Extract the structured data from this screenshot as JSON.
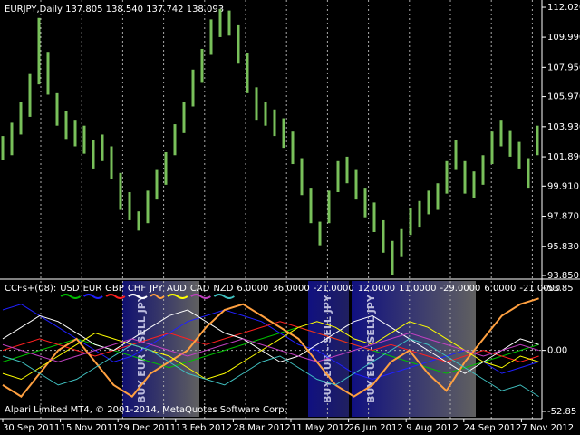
{
  "chart_data": [
    {
      "type": "ohlc",
      "title": "EURJPY,Daily 137.805 138.540 137.742 138.093",
      "color": "#78c05a",
      "high": [
        103.3,
        104.2,
        105.6,
        107.5,
        111.3,
        109.0,
        106.2,
        105.0,
        104.4,
        104.0,
        103.0,
        103.4,
        102.6,
        100.8,
        99.5,
        98.2,
        99.6,
        101.0,
        102.2,
        104.1,
        105.6,
        107.8,
        109.2,
        111.2,
        111.9,
        111.8,
        110.8,
        108.9,
        106.6,
        105.6,
        105.1,
        104.5,
        103.6,
        101.8,
        99.8,
        97.5,
        99.6,
        101.6,
        101.9,
        101.0,
        99.8,
        98.8,
        97.6,
        96.2,
        97.0,
        98.4,
        98.9,
        99.6,
        100.1,
        101.6,
        103.0,
        101.6,
        100.9,
        102.0,
        103.6,
        104.4,
        103.7,
        102.9,
        101.8,
        104.0
      ],
      "low": [
        101.7,
        102.0,
        103.4,
        104.6,
        106.8,
        106.1,
        104.0,
        103.1,
        102.6,
        102.1,
        101.1,
        101.6,
        100.4,
        98.3,
        97.6,
        96.9,
        97.4,
        99.0,
        100.0,
        102.0,
        103.5,
        105.3,
        106.9,
        108.8,
        110.0,
        110.1,
        108.2,
        106.2,
        104.4,
        104.0,
        103.3,
        102.5,
        101.4,
        99.3,
        97.4,
        95.9,
        97.4,
        99.5,
        100.1,
        99.0,
        97.8,
        96.8,
        95.4,
        93.9,
        95.1,
        96.6,
        97.1,
        98.0,
        98.3,
        99.4,
        101.0,
        99.4,
        99.1,
        100.0,
        101.4,
        102.6,
        101.9,
        101.1,
        99.8,
        102.0
      ],
      "ylim": [
        93.73,
        112.39
      ],
      "yticks": [
        {
          "value": 112.02,
          "label": "112.020"
        },
        {
          "value": 109.99,
          "label": "109.990"
        },
        {
          "value": 107.95,
          "label": "107.950"
        },
        {
          "value": 105.97,
          "label": "105.970"
        },
        {
          "value": 103.93,
          "label": "103.930"
        },
        {
          "value": 101.89,
          "label": "101.890"
        },
        {
          "value": 99.91,
          "label": "99.910"
        },
        {
          "value": 97.87,
          "label": "97.870"
        },
        {
          "value": 95.83,
          "label": "95.830"
        },
        {
          "value": 93.85,
          "label": "93.850"
        }
      ],
      "categories": [
        "30 Sep 2011",
        "15 Nov 2011",
        "29 Dec 2011",
        "13 Feb 2012",
        "28 Mar 2012",
        "11 May 2012",
        "26 Jun 2012",
        "9 Aug 2012",
        "24 Sep 2012",
        "7 Nov 2012"
      ]
    },
    {
      "type": "line",
      "title": "CCFs+(08):",
      "readouts": [
        "6.0000",
        "36.0000",
        "-21.0000",
        "12.0000",
        "11.0000",
        "-29.0000",
        "6.0000",
        "-21.0000"
      ],
      "ylim": [
        -57.56,
        60.13
      ],
      "yticks": [
        53.85,
        {
          "value": 0,
          "label": "0.00"
        },
        -52.85
      ],
      "annotations": [
        "BUY EUR - SELL JPY",
        "BUY EUR - SELL JPY",
        "BUY EUR - SELL JPY"
      ],
      "footer": "Alpari Limited MT4, © 2001-2014, MetaQuotes Software Corp.",
      "series": [
        {
          "name": "USD",
          "color": "#00c000",
          "values": [
            -10,
            -5,
            0,
            5,
            10,
            5,
            0,
            -5,
            -10,
            -15,
            -10,
            -5,
            0,
            5,
            10,
            15,
            20,
            15,
            10,
            5,
            0,
            -5,
            -10,
            -15,
            -20,
            -15,
            -10,
            -5,
            0,
            5
          ]
        },
        {
          "name": "EUR",
          "color": "#2020ff",
          "values": [
            35,
            40,
            30,
            20,
            10,
            0,
            -10,
            -5,
            5,
            15,
            25,
            30,
            35,
            30,
            25,
            15,
            5,
            0,
            -10,
            -20,
            -25,
            -20,
            -15,
            -10,
            -5,
            0,
            -10,
            -20,
            -15,
            -10
          ]
        },
        {
          "name": "GBP",
          "color": "#ff2020",
          "values": [
            0,
            5,
            10,
            5,
            0,
            -5,
            0,
            5,
            10,
            15,
            10,
            5,
            10,
            15,
            20,
            25,
            20,
            15,
            10,
            5,
            0,
            5,
            0,
            -5,
            -10,
            -5,
            0,
            -5,
            -10,
            -5
          ]
        },
        {
          "name": "CHF",
          "color": "#ffffff",
          "values": [
            10,
            20,
            30,
            25,
            15,
            5,
            0,
            10,
            20,
            30,
            35,
            25,
            15,
            10,
            0,
            -10,
            -5,
            5,
            15,
            25,
            30,
            20,
            10,
            0,
            -10,
            -20,
            -10,
            0,
            10,
            5
          ]
        },
        {
          "name": "JPY",
          "color": "#ffa040",
          "values": [
            -30,
            -40,
            -20,
            0,
            10,
            -10,
            -30,
            -40,
            -20,
            -10,
            0,
            20,
            35,
            40,
            30,
            20,
            10,
            -10,
            -30,
            -40,
            -30,
            -10,
            0,
            -20,
            -35,
            -10,
            10,
            30,
            40,
            45
          ]
        },
        {
          "name": "AUD",
          "color": "#ffff00",
          "values": [
            -20,
            -25,
            -15,
            -5,
            5,
            15,
            10,
            5,
            0,
            -5,
            -15,
            -25,
            -20,
            -10,
            0,
            10,
            20,
            25,
            20,
            10,
            5,
            15,
            25,
            20,
            10,
            0,
            -10,
            -15,
            -5,
            -10
          ]
        },
        {
          "name": "CAD",
          "color": "#c040c0",
          "values": [
            5,
            0,
            -5,
            -10,
            -5,
            0,
            5,
            10,
            5,
            0,
            -5,
            0,
            5,
            10,
            5,
            0,
            -5,
            -10,
            -5,
            0,
            5,
            10,
            15,
            10,
            5,
            0,
            -5,
            0,
            5,
            0
          ]
        },
        {
          "name": "NZD",
          "color": "#40c0c0",
          "values": [
            -5,
            -10,
            -20,
            -30,
            -25,
            -15,
            -5,
            5,
            0,
            -10,
            -20,
            -25,
            -30,
            -20,
            -10,
            -5,
            -15,
            -25,
            -30,
            -20,
            -10,
            0,
            10,
            5,
            -5,
            -15,
            -25,
            -35,
            -30,
            -40
          ]
        }
      ]
    }
  ]
}
